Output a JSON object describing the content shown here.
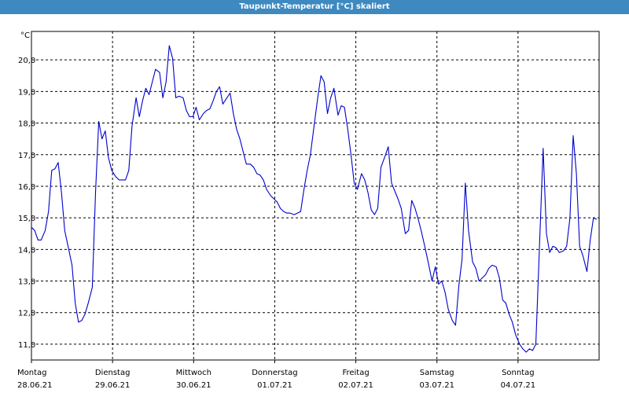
{
  "window": {
    "title": "Taupunkt-Temperatur [°C] skaliert"
  },
  "chart_data": {
    "type": "line",
    "title": "Taupunkt-Temperatur [°C] skaliert",
    "ylabel": "°C",
    "xlabel": "",
    "ylim": [
      10.5,
      20.9
    ],
    "xlim": [
      0,
      7
    ],
    "y_ticks": [
      "11,0",
      "12,0",
      "13,0",
      "14,0",
      "15,0",
      "16,0",
      "17,0",
      "18,0",
      "19,0",
      "20,0"
    ],
    "y_tick_values": [
      11,
      12,
      13,
      14,
      15,
      16,
      17,
      18,
      19,
      20
    ],
    "x_tick_labels": [
      {
        "day": "Montag",
        "date": "28.06.21"
      },
      {
        "day": "Dienstag",
        "date": "29.06.21"
      },
      {
        "day": "Mittwoch",
        "date": "30.06.21"
      },
      {
        "day": "Donnerstag",
        "date": "01.07.21"
      },
      {
        "day": "Freitag",
        "date": "02.07.21"
      },
      {
        "day": "Samstag",
        "date": "03.07.21"
      },
      {
        "day": "Sonntag",
        "date": "04.07.21"
      }
    ],
    "grid": true,
    "series": [
      {
        "color": "#0000cc",
        "x": [
          0.0,
          0.04,
          0.08,
          0.12,
          0.17,
          0.21,
          0.25,
          0.29,
          0.33,
          0.37,
          0.41,
          0.46,
          0.5,
          0.54,
          0.58,
          0.62,
          0.66,
          0.7,
          0.75,
          0.79,
          0.83,
          0.87,
          0.91,
          0.95,
          0.99,
          1.04,
          1.08,
          1.12,
          1.16,
          1.2,
          1.24,
          1.29,
          1.33,
          1.37,
          1.41,
          1.45,
          1.49,
          1.53,
          1.58,
          1.62,
          1.66,
          1.7,
          1.74,
          1.78,
          1.82,
          1.87,
          1.91,
          1.95,
          1.99,
          2.03,
          2.07,
          2.12,
          2.16,
          2.2,
          2.24,
          2.28,
          2.32,
          2.36,
          2.41,
          2.45,
          2.49,
          2.53,
          2.57,
          2.61,
          2.65,
          2.7,
          2.74,
          2.78,
          2.82,
          2.86,
          2.9,
          2.95,
          2.99,
          3.03,
          3.07,
          3.11,
          3.15,
          3.19,
          3.24,
          3.28,
          3.32,
          3.36,
          3.4,
          3.44,
          3.48,
          3.53,
          3.57,
          3.61,
          3.65,
          3.69,
          3.73,
          3.78,
          3.82,
          3.86,
          3.9,
          3.94,
          3.98,
          4.02,
          4.07,
          4.11,
          4.15,
          4.19,
          4.23,
          4.27,
          4.31,
          4.36,
          4.4,
          4.44,
          4.48,
          4.52,
          4.56,
          4.61,
          4.65,
          4.69,
          4.73,
          4.77,
          4.81,
          4.85,
          4.9,
          4.94,
          4.98,
          5.02,
          5.06,
          5.1,
          5.14,
          5.19,
          5.23,
          5.27,
          5.31,
          5.35,
          5.39,
          5.44,
          5.48,
          5.52,
          5.56,
          5.6,
          5.64,
          5.68,
          5.73,
          5.77,
          5.81,
          5.85,
          5.89,
          5.93,
          5.97,
          6.02,
          6.06,
          6.1,
          6.14,
          6.18,
          6.22,
          6.26,
          6.31,
          6.35,
          6.39,
          6.43,
          6.47,
          6.51,
          6.56,
          6.6,
          6.64,
          6.68,
          6.72,
          6.76,
          6.8,
          6.85,
          6.89,
          6.93,
          6.97
        ],
        "y": [
          14.7,
          14.6,
          14.3,
          14.3,
          14.6,
          15.2,
          16.5,
          16.55,
          16.75,
          15.8,
          14.6,
          14.0,
          13.5,
          12.3,
          11.7,
          11.75,
          11.95,
          12.3,
          12.8,
          15.8,
          18.05,
          17.5,
          17.75,
          16.9,
          16.5,
          16.3,
          16.2,
          16.2,
          16.2,
          16.5,
          17.9,
          18.8,
          18.2,
          18.7,
          19.1,
          18.9,
          19.3,
          19.7,
          19.6,
          18.8,
          19.3,
          20.45,
          20.05,
          18.8,
          18.85,
          18.8,
          18.4,
          18.2,
          18.2,
          18.5,
          18.1,
          18.3,
          18.4,
          18.45,
          18.7,
          19.0,
          19.15,
          18.6,
          18.8,
          18.95,
          18.3,
          17.8,
          17.5,
          17.1,
          16.7,
          16.7,
          16.6,
          16.4,
          16.35,
          16.2,
          15.9,
          15.7,
          15.6,
          15.5,
          15.3,
          15.2,
          15.15,
          15.15,
          15.1,
          15.15,
          15.2,
          15.9,
          16.5,
          17.0,
          17.8,
          18.8,
          19.5,
          19.3,
          18.3,
          18.8,
          19.1,
          18.25,
          18.55,
          18.5,
          17.8,
          17.0,
          16.1,
          15.9,
          16.4,
          16.2,
          15.8,
          15.25,
          15.1,
          15.3,
          16.6,
          16.95,
          17.25,
          16.1,
          15.85,
          15.6,
          15.3,
          14.5,
          14.6,
          15.55,
          15.3,
          14.95,
          14.55,
          14.1,
          13.5,
          13.0,
          13.45,
          12.9,
          13.0,
          12.65,
          12.1,
          11.75,
          11.6,
          12.85,
          13.7,
          16.1,
          14.6,
          13.6,
          13.4,
          13.0,
          13.1,
          13.2,
          13.4,
          13.5,
          13.45,
          13.1,
          12.4,
          12.3,
          11.95,
          11.7,
          11.3,
          11.0,
          10.85,
          10.75,
          10.85,
          10.8,
          11.0,
          13.8,
          17.2,
          14.5,
          13.9,
          14.1,
          14.05,
          13.9,
          13.95,
          14.1,
          15.0,
          17.6,
          16.4,
          14.1,
          13.8,
          13.3,
          14.3,
          15.0,
          14.95
        ]
      }
    ]
  }
}
